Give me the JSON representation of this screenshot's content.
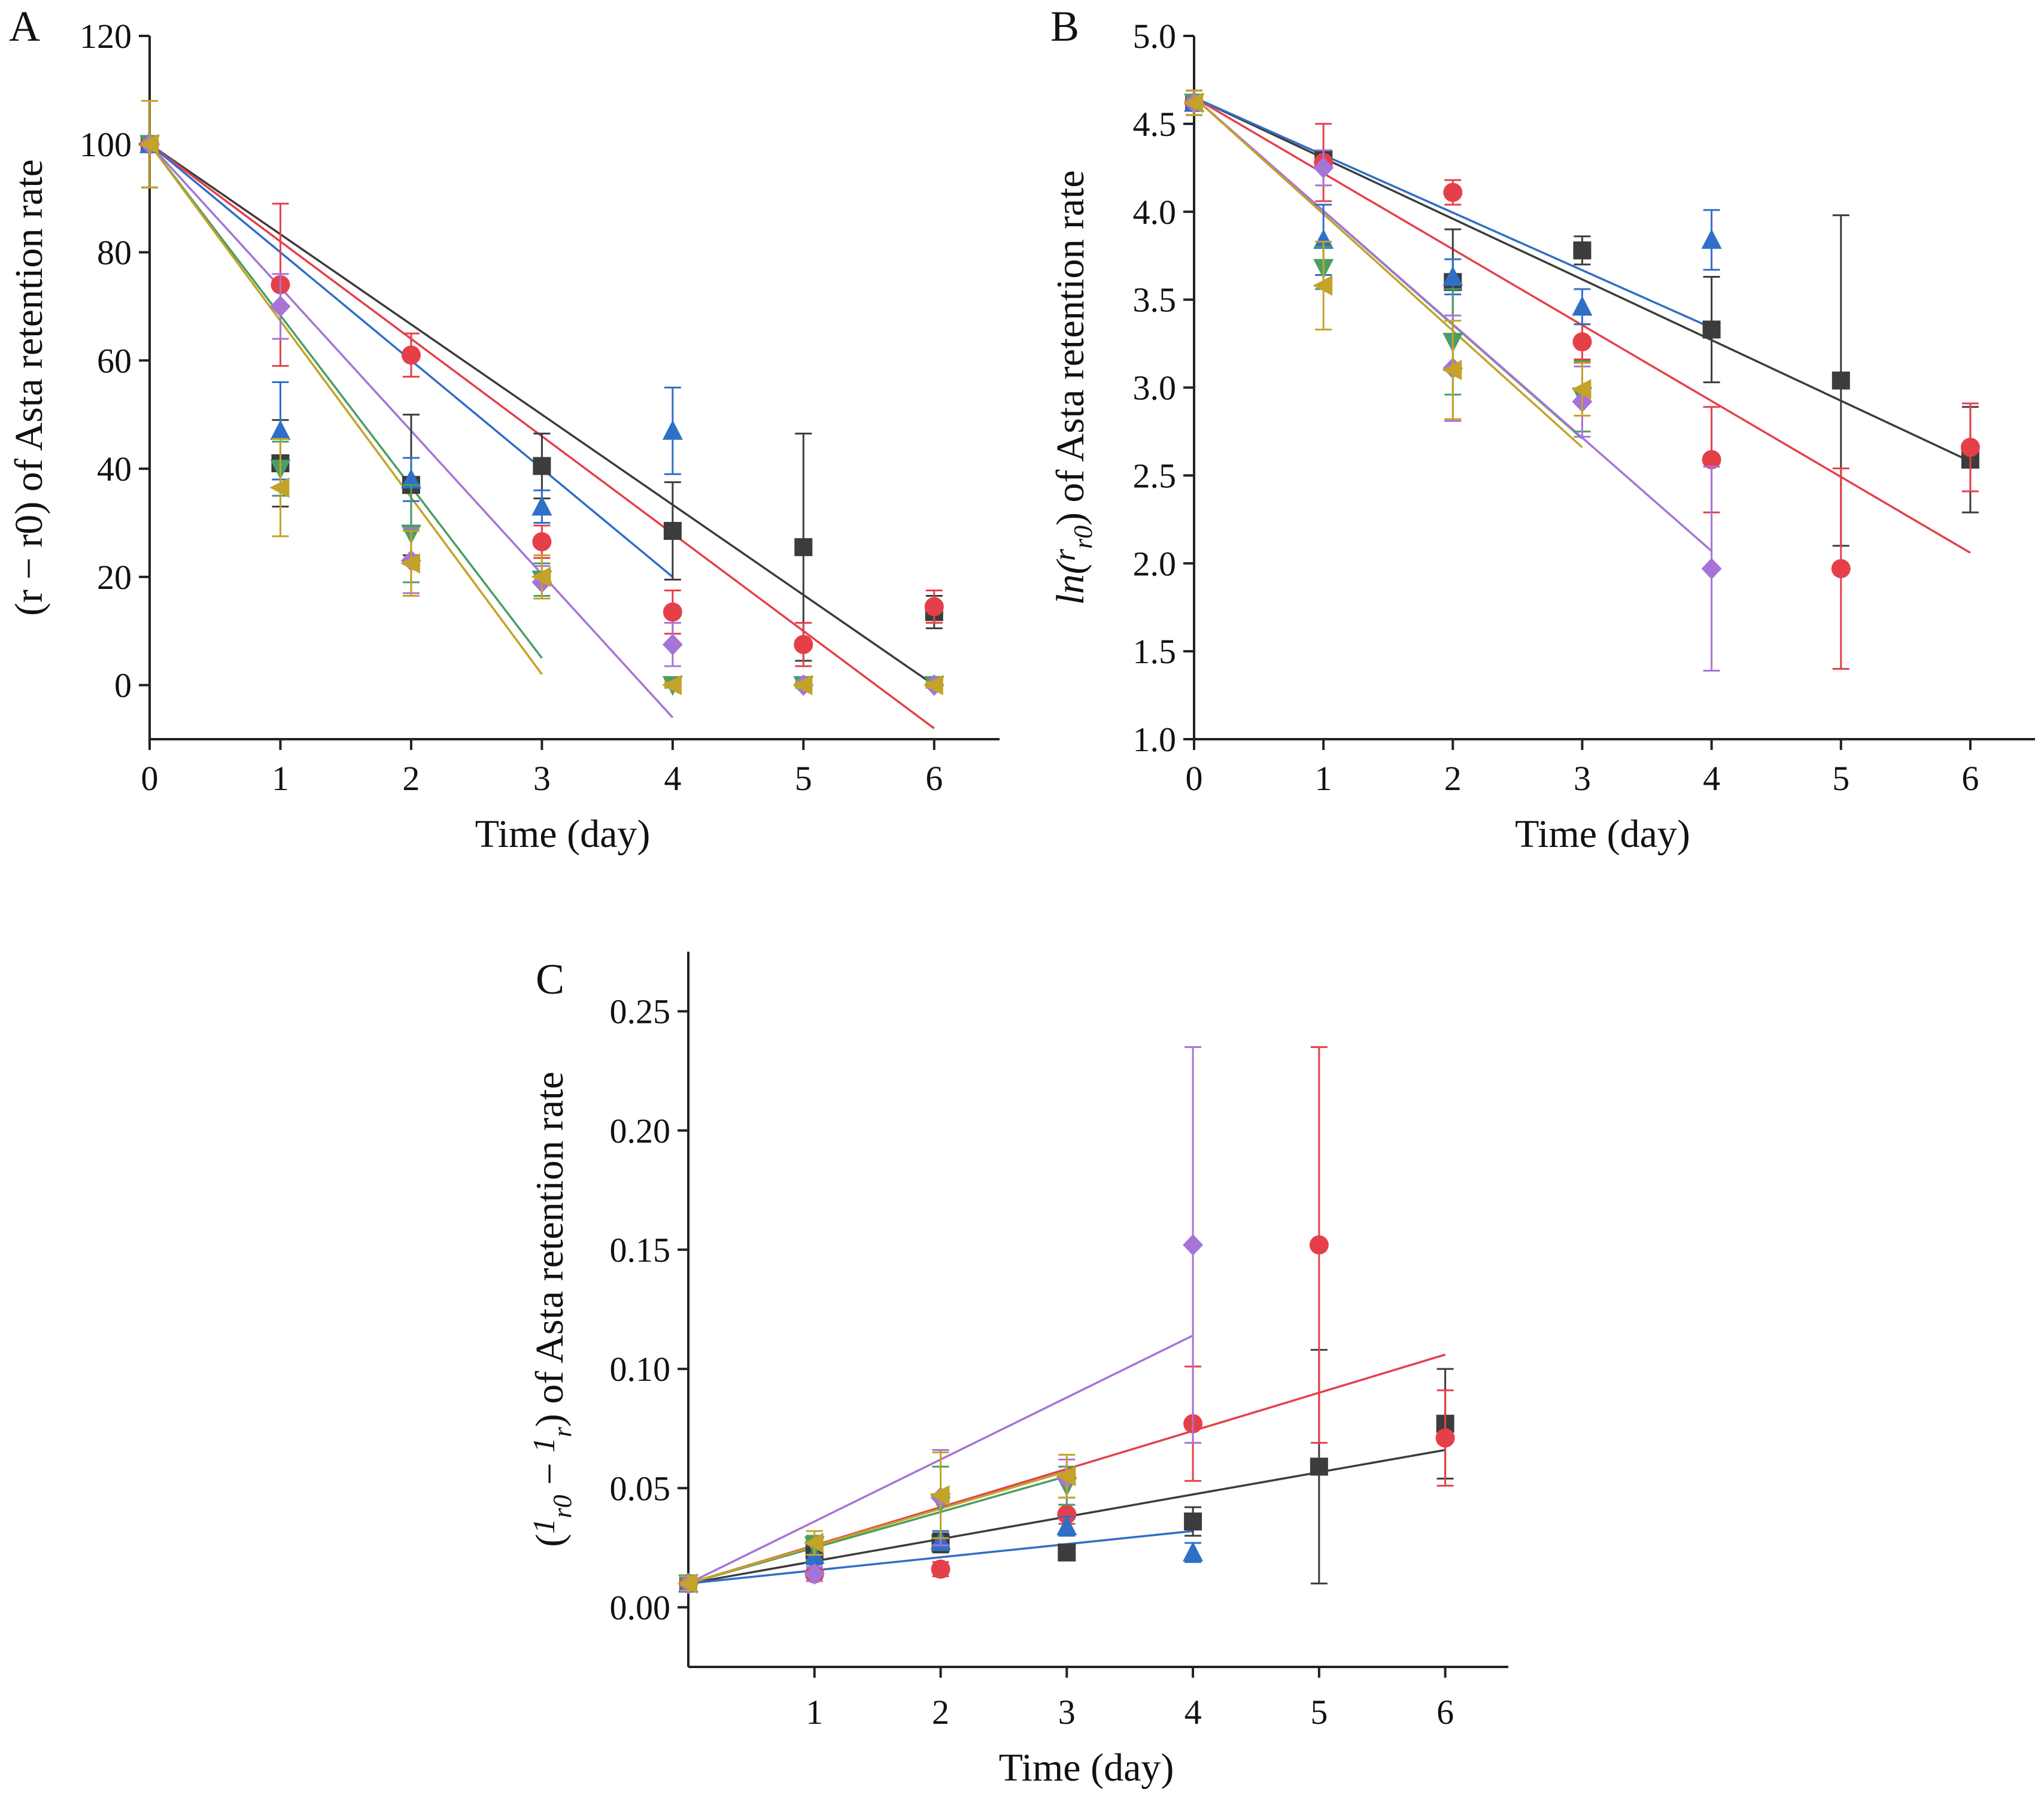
{
  "colors": {
    "black": "#3c3c3c",
    "red": "#e5404a",
    "blue": "#2f6fc5",
    "green": "#4a9e64",
    "purple": "#a674d6",
    "gold": "#c3a328",
    "brown": "#b88c2c",
    "teal": "#3a8fb0",
    "axis": "#222222"
  },
  "chart_data": [
    {
      "panel": "A",
      "type": "scatter",
      "xlabel": "Time (day)",
      "ylabel": "(r − r0) of Asta retention rate",
      "xlim": [
        0,
        6.5
      ],
      "ylim": [
        -10,
        120
      ],
      "xticks": [
        0,
        1,
        2,
        3,
        4,
        5,
        6
      ],
      "yticks": [
        0,
        20,
        40,
        60,
        80,
        100,
        120
      ],
      "series": [
        {
          "name": "black-square",
          "color": "black",
          "marker": "square",
          "x": [
            0,
            1,
            2,
            3,
            4,
            5,
            6
          ],
          "y": [
            100,
            41,
            37,
            40.5,
            28.5,
            25.5,
            13.5
          ],
          "err": [
            8,
            8,
            13,
            6,
            9,
            21,
            3
          ],
          "fit": [
            [
              0,
              100
            ],
            [
              6,
              0
            ]
          ]
        },
        {
          "name": "red-circle",
          "color": "red",
          "marker": "circle",
          "x": [
            0,
            1,
            2,
            3,
            4,
            5,
            6
          ],
          "y": [
            100,
            74,
            61,
            26.5,
            13.5,
            7.5,
            14.5
          ],
          "err": [
            8,
            15,
            4,
            3,
            4,
            4,
            3
          ],
          "fit": [
            [
              0,
              100
            ],
            [
              6,
              -8
            ]
          ]
        },
        {
          "name": "blue-triangle-up",
          "color": "blue",
          "marker": "triangle-up",
          "x": [
            0,
            1,
            2,
            3,
            4
          ],
          "y": [
            100,
            47,
            38,
            33,
            47
          ],
          "err": [
            8,
            9,
            4,
            3,
            8
          ],
          "fit": [
            [
              0,
              100
            ],
            [
              4,
              20
            ]
          ]
        },
        {
          "name": "green-triangle-down",
          "color": "green",
          "marker": "triangle-down",
          "x": [
            0,
            1,
            2,
            3,
            4,
            5,
            6
          ],
          "y": [
            100,
            40,
            28,
            19.5,
            0,
            0,
            0
          ],
          "err": [
            8,
            5,
            9,
            3,
            0.5,
            0.5,
            0.5
          ],
          "fit": [
            [
              0,
              100
            ],
            [
              3,
              5
            ]
          ]
        },
        {
          "name": "purple-diamond",
          "color": "purple",
          "marker": "diamond",
          "x": [
            0,
            1,
            2,
            3,
            4,
            5,
            6
          ],
          "y": [
            100,
            70,
            23,
            19,
            7.5,
            0,
            0
          ],
          "err": [
            8,
            6,
            6,
            3,
            4,
            0.5,
            0.5
          ],
          "fit": [
            [
              0,
              100
            ],
            [
              4,
              -6
            ]
          ]
        },
        {
          "name": "gold-triangle-left",
          "color": "gold",
          "marker": "triangle-left",
          "x": [
            0,
            1,
            2,
            3,
            4,
            5,
            6
          ],
          "y": [
            100,
            36.5,
            22.5,
            20,
            0,
            0,
            0
          ],
          "err": [
            8,
            9,
            6,
            4,
            0.5,
            0.5,
            0.5
          ],
          "fit": [
            [
              0,
              100
            ],
            [
              3,
              2
            ]
          ]
        }
      ]
    },
    {
      "panel": "B",
      "type": "scatter",
      "xlabel": "Time (day)",
      "ylabel": "ln(r/r0) of Asta retention rate",
      "ylabel_parts": [
        "ln(",
        "r",
        "r0",
        ") of Asta retention rate"
      ],
      "xlim": [
        0,
        6.5
      ],
      "ylim": [
        1.0,
        5.0
      ],
      "xticks": [
        0,
        1,
        2,
        3,
        4,
        5,
        6
      ],
      "yticks": [
        "1.0",
        "1.5",
        "2.0",
        "2.5",
        "3.0",
        "3.5",
        "4.0",
        "4.5",
        "5.0"
      ],
      "series": [
        {
          "name": "black-square",
          "color": "black",
          "marker": "square",
          "x": [
            0,
            1,
            2,
            3,
            4,
            5,
            6
          ],
          "y": [
            4.62,
            4.3,
            3.6,
            3.78,
            3.33,
            3.04,
            2.59
          ],
          "err": [
            0.07,
            0.05,
            0.3,
            0.08,
            0.3,
            0.94,
            0.3
          ],
          "fit": [
            [
              0,
              4.65
            ],
            [
              6,
              2.58
            ]
          ]
        },
        {
          "name": "red-circle",
          "color": "red",
          "marker": "circle",
          "x": [
            0,
            1,
            2,
            3,
            4,
            5,
            6
          ],
          "y": [
            4.62,
            4.28,
            4.11,
            3.26,
            2.59,
            1.97,
            2.66
          ],
          "err": [
            0.07,
            0.22,
            0.07,
            0.1,
            0.3,
            0.57,
            0.25
          ],
          "fit": [
            [
              0,
              4.65
            ],
            [
              6,
              2.06
            ]
          ]
        },
        {
          "name": "blue-triangle-up",
          "color": "blue",
          "marker": "triangle-up",
          "x": [
            0,
            1,
            2,
            3,
            4
          ],
          "y": [
            4.62,
            3.84,
            3.63,
            3.46,
            3.84
          ],
          "err": [
            0.07,
            0.2,
            0.1,
            0.1,
            0.17
          ],
          "fit": [
            [
              0,
              4.65
            ],
            [
              4,
              3.34
            ]
          ]
        },
        {
          "name": "green-triangle-down",
          "color": "green",
          "marker": "triangle-down",
          "x": [
            0,
            1,
            2,
            3
          ],
          "y": [
            4.62,
            3.68,
            3.26,
            2.95
          ],
          "err": [
            0.07,
            0.12,
            0.3,
            0.2
          ],
          "fit": [
            [
              0,
              4.65
            ],
            [
              3,
              2.71
            ]
          ]
        },
        {
          "name": "purple-diamond",
          "color": "purple",
          "marker": "diamond",
          "x": [
            0,
            1,
            2,
            3,
            4
          ],
          "y": [
            4.62,
            4.25,
            3.11,
            2.92,
            1.97
          ],
          "err": [
            0.07,
            0.1,
            0.3,
            0.2,
            0.58
          ],
          "fit": [
            [
              0,
              4.65
            ],
            [
              4,
              2.07
            ]
          ]
        },
        {
          "name": "gold-triangle-left",
          "color": "gold",
          "marker": "triangle-left",
          "x": [
            0,
            1,
            2,
            3
          ],
          "y": [
            4.62,
            3.58,
            3.1,
            2.99
          ],
          "err": [
            0.07,
            0.25,
            0.28,
            0.15
          ],
          "fit": [
            [
              0,
              4.65
            ],
            [
              3,
              2.66
            ]
          ]
        }
      ]
    },
    {
      "panel": "C",
      "type": "scatter",
      "xlabel": "Time (day)",
      "ylabel": "(1/r0 − 1/r) of Asta retention rate",
      "ylabel_parts": [
        "(",
        "1",
        "r0",
        "−",
        "1",
        "r",
        ") of Asta retention rate"
      ],
      "xlim": [
        0,
        6.5
      ],
      "ylim": [
        -0.025,
        0.275
      ],
      "xticks": [
        1,
        2,
        3,
        4,
        5,
        6
      ],
      "yticks": [
        "0.00",
        "0.05",
        "0.10",
        "0.15",
        "0.20",
        "0.25"
      ],
      "series": [
        {
          "name": "black-square",
          "color": "black",
          "marker": "square",
          "x": [
            0,
            1,
            2,
            3,
            4,
            5,
            6
          ],
          "y": [
            0.01,
            0.024,
            0.027,
            0.023,
            0.036,
            0.059,
            0.077
          ],
          "err": [
            0.003,
            0.004,
            0.004,
            0.003,
            0.006,
            0.049,
            0.023
          ],
          "fit": [
            [
              0,
              0.01
            ],
            [
              6,
              0.066
            ]
          ]
        },
        {
          "name": "red-circle",
          "color": "red",
          "marker": "circle",
          "x": [
            0,
            1,
            2,
            3,
            4,
            5,
            6
          ],
          "y": [
            0.01,
            0.014,
            0.016,
            0.039,
            0.077,
            0.152,
            0.071
          ],
          "err": [
            0.003,
            0.003,
            0.003,
            0.004,
            0.024,
            0.083,
            0.02
          ],
          "fit": [
            [
              0,
              0.01
            ],
            [
              6,
              0.106
            ]
          ]
        },
        {
          "name": "blue-triangle-up",
          "color": "blue",
          "marker": "triangle-up",
          "x": [
            0,
            1,
            2,
            3,
            4
          ],
          "y": [
            0.01,
            0.022,
            0.028,
            0.034,
            0.023
          ],
          "err": [
            0.003,
            0.004,
            0.004,
            0.004,
            0.004
          ],
          "fit": [
            [
              0,
              0.01
            ],
            [
              4,
              0.032
            ]
          ]
        },
        {
          "name": "green-triangle-down",
          "color": "green",
          "marker": "triangle-down",
          "x": [
            0,
            1,
            2,
            3
          ],
          "y": [
            0.01,
            0.026,
            0.044,
            0.051
          ],
          "err": [
            0.003,
            0.004,
            0.015,
            0.008
          ],
          "fit": [
            [
              0,
              0.01
            ],
            [
              3,
              0.055
            ]
          ]
        },
        {
          "name": "purple-diamond",
          "color": "purple",
          "marker": "diamond",
          "x": [
            0,
            1,
            2,
            3,
            4
          ],
          "y": [
            0.01,
            0.014,
            0.046,
            0.054,
            0.152
          ],
          "err": [
            0.003,
            0.003,
            0.02,
            0.008,
            0.083
          ],
          "fit": [
            [
              0,
              0.01
            ],
            [
              4,
              0.114
            ]
          ]
        },
        {
          "name": "gold-triangle-left",
          "color": "gold",
          "marker": "triangle-left",
          "x": [
            0,
            1,
            2,
            3
          ],
          "y": [
            0.01,
            0.027,
            0.047,
            0.055
          ],
          "err": [
            0.003,
            0.005,
            0.018,
            0.009
          ],
          "fit": [
            [
              0,
              0.01
            ],
            [
              3,
              0.057
            ]
          ]
        }
      ]
    }
  ]
}
